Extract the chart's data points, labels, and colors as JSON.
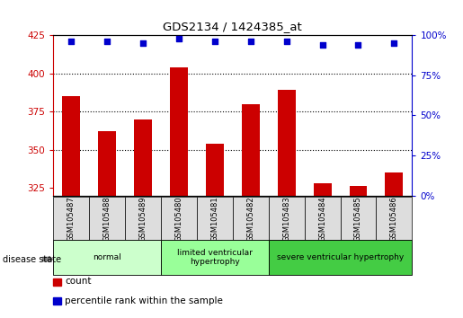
{
  "title": "GDS2134 / 1424385_at",
  "samples": [
    "GSM105487",
    "GSM105488",
    "GSM105489",
    "GSM105480",
    "GSM105481",
    "GSM105482",
    "GSM105483",
    "GSM105484",
    "GSM105485",
    "GSM105486"
  ],
  "counts": [
    385,
    362,
    370,
    404,
    354,
    380,
    389,
    328,
    326,
    335
  ],
  "percentile_ranks": [
    96,
    96,
    95,
    98,
    96,
    96,
    96,
    94,
    94,
    95
  ],
  "ylim_left": [
    320,
    425
  ],
  "yticks_left": [
    325,
    350,
    375,
    400,
    425
  ],
  "ylim_right": [
    0,
    100
  ],
  "yticks_right": [
    0,
    25,
    50,
    75,
    100
  ],
  "groups": [
    {
      "label": "normal",
      "start": 0,
      "end": 3,
      "color": "#ccffcc"
    },
    {
      "label": "limited ventricular\nhypertrophy",
      "start": 3,
      "end": 6,
      "color": "#99ff99"
    },
    {
      "label": "severe ventricular hypertrophy",
      "start": 6,
      "end": 10,
      "color": "#44cc44"
    }
  ],
  "bar_color": "#cc0000",
  "dot_color": "#0000cc",
  "legend_count_label": "count",
  "legend_pct_label": "percentile rank within the sample",
  "disease_state_label": "disease state",
  "background_color": "#ffffff",
  "tick_color_left": "#cc0000",
  "tick_color_right": "#0000cc"
}
